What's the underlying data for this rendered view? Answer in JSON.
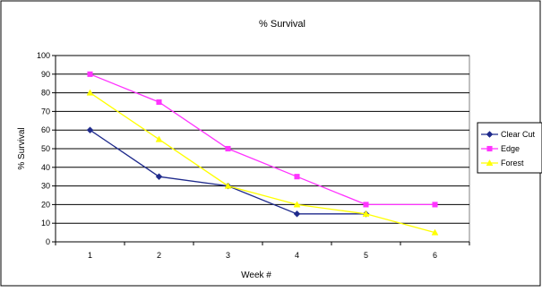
{
  "chart_data": {
    "type": "line",
    "title": "% Survival",
    "xlabel": "Week #",
    "ylabel": "% Survival",
    "x": [
      1,
      2,
      3,
      4,
      5,
      6
    ],
    "xlim": [
      1,
      6
    ],
    "ylim": [
      0,
      100
    ],
    "ytick_step": 10,
    "grid": true,
    "legend_position": "right",
    "series": [
      {
        "name": "Clear Cut",
        "values": [
          60,
          35,
          30,
          15,
          15,
          null
        ],
        "color": "#1f2a8c",
        "marker": "diamond"
      },
      {
        "name": "Edge",
        "values": [
          90,
          75,
          50,
          35,
          20,
          20
        ],
        "color": "#ff33ff",
        "marker": "square"
      },
      {
        "name": "Forest",
        "values": [
          80,
          55,
          30,
          20,
          15,
          5
        ],
        "color": "#ffff00",
        "marker": "triangle"
      }
    ]
  }
}
